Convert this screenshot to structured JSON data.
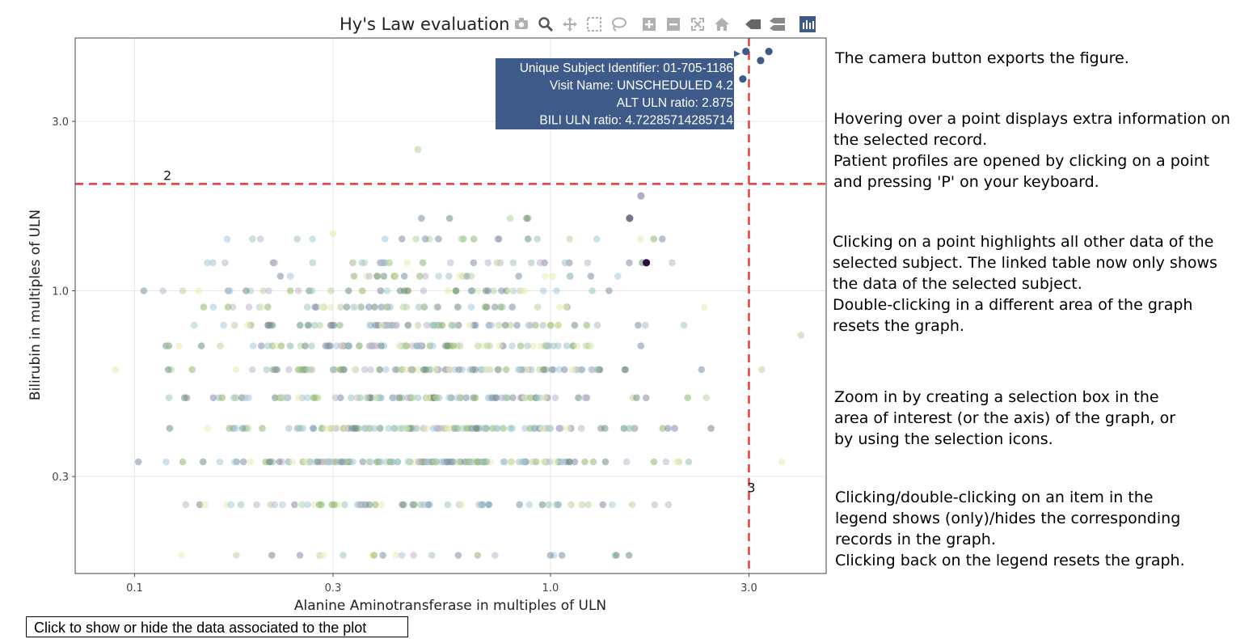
{
  "chart_data": {
    "type": "scatter",
    "title": "Hy's Law evaluation",
    "xlabel": "Alanine Aminotransferase in multiples of ULN",
    "ylabel": "Bilirubin in multiples of ULN",
    "x_scale": "log",
    "y_scale": "log",
    "xlim": [
      0.072,
      4.6
    ],
    "ylim": [
      0.16,
      5.15
    ],
    "x_ticks": [
      0.1,
      0.3,
      1.0,
      3.0
    ],
    "x_tick_labels": [
      "0.1",
      "0.3",
      "1.0",
      "3.0"
    ],
    "y_ticks": [
      0.3,
      1.0,
      3.0
    ],
    "y_tick_labels": [
      "0.3",
      "1.0",
      "3.0"
    ],
    "grid": true,
    "reference_lines": [
      {
        "orientation": "horizontal",
        "value": 2,
        "label": "2",
        "color": "#e53935",
        "style": "dashed"
      },
      {
        "orientation": "vertical",
        "value": 3,
        "label": "3",
        "color": "#e53935",
        "style": "dashed"
      }
    ],
    "y_levels": [
      0.18,
      0.25,
      0.33,
      0.41,
      0.5,
      0.6,
      0.7,
      0.8,
      0.9,
      1.0,
      1.1,
      1.2,
      1.4,
      1.6
    ],
    "background_points": {
      "description_count": 900,
      "x_range": [
        0.09,
        4.0
      ],
      "palette": [
        "#9ec5c3",
        "#b9d6a3",
        "#8fb76c",
        "#6d8f80",
        "#c1b5d0",
        "#e7ecb3",
        "#7e8fa8",
        "#a7c9d9"
      ]
    },
    "highlight_points": [
      {
        "x": 2.95,
        "y": 4.72,
        "color": "#3d5a88"
      },
      {
        "x": 3.35,
        "y": 4.72,
        "color": "#3d5a88"
      },
      {
        "x": 3.2,
        "y": 4.45,
        "color": "#3d5a88"
      },
      {
        "x": 2.9,
        "y": 3.95,
        "color": "#3d5a88"
      },
      {
        "x": 2.4,
        "y": 3.25,
        "color": "#3d5a88"
      },
      {
        "x": 1.55,
        "y": 1.6,
        "color": "#7a6f8f"
      },
      {
        "x": 1.65,
        "y": 1.85,
        "color": "#b7aac4"
      },
      {
        "x": 1.7,
        "y": 1.2,
        "color": "#2a0b3c"
      }
    ],
    "hover": {
      "point": {
        "x": 2.875,
        "y": 4.72285714285714
      },
      "lines": [
        "Unique Subject Identifier: 01-705-1186",
        "Visit Name: UNSCHEDULED 4.2",
        "ALT ULN ratio: 2.875",
        "BILI ULN ratio: 4.72285714285714"
      ],
      "bg_color": "#3d5a88"
    }
  },
  "modebar": {
    "buttons": [
      "camera-icon",
      "zoom-icon",
      "pan-icon",
      "box-select-icon",
      "lasso-icon",
      "zoom-in-icon",
      "zoom-out-icon",
      "autoscale-icon",
      "reset-axes-icon",
      "hover-closest-icon",
      "hover-compare-icon",
      "plotly-logo-icon"
    ],
    "icon_color": "#b0b0b0",
    "active_color": "#3d5a88"
  },
  "annotations": {
    "camera": "The camera button exports the figure.",
    "hover_1": "Hovering over a point displays extra information on",
    "hover_2": "the selected record.",
    "hover_3": "Patient profiles are opened by clicking on a point",
    "hover_4": "and pressing 'P' on your keyboard.",
    "click_1": "Clicking on a point highlights all other data of the",
    "click_2": "selected subject. The linked table now only shows",
    "click_3": "the data of the selected subject.",
    "click_4": "Double-clicking in a different area of the graph",
    "click_5": "resets the graph.",
    "zoom_1": "Zoom in by creating a selection box in the",
    "zoom_2": "area of interest (or the axis) of the graph, or",
    "zoom_3": "by using the selection icons.",
    "legend_1": "Clicking/double-clicking on an item in the",
    "legend_2": "legend shows (only)/hides the corresponding",
    "legend_3": "records in the graph.",
    "legend_4": "Clicking back on the legend resets the graph."
  },
  "data_toggle_label": "Click to show or hide the data associated to the plot"
}
